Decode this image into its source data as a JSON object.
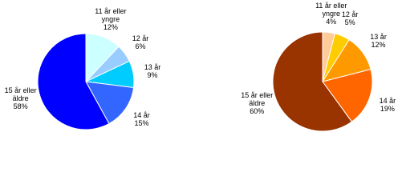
{
  "chart_data": [
    {
      "type": "pie",
      "categories": [
        "11 år eller yngre",
        "12 år",
        "13 år",
        "14 år",
        "15 år eller äldre"
      ],
      "values": [
        12,
        6,
        9,
        15,
        58
      ],
      "value_labels": [
        "12%",
        "6%",
        "9%",
        "15%",
        "58%"
      ],
      "colors": [
        "#ccffff",
        "#99ccff",
        "#00ccff",
        "#3366ff",
        "#0000ff"
      ]
    },
    {
      "type": "pie",
      "categories": [
        "11 år eller yngre",
        "12 år",
        "13 år",
        "14 år",
        "15 år eller äldre"
      ],
      "values": [
        4,
        5,
        12,
        19,
        60
      ],
      "value_labels": [
        "4%",
        "5%",
        "12%",
        "19%",
        "60%"
      ],
      "colors": [
        "#ffcc99",
        "#ffcc00",
        "#ff9900",
        "#ff6600",
        "#993300"
      ]
    }
  ]
}
